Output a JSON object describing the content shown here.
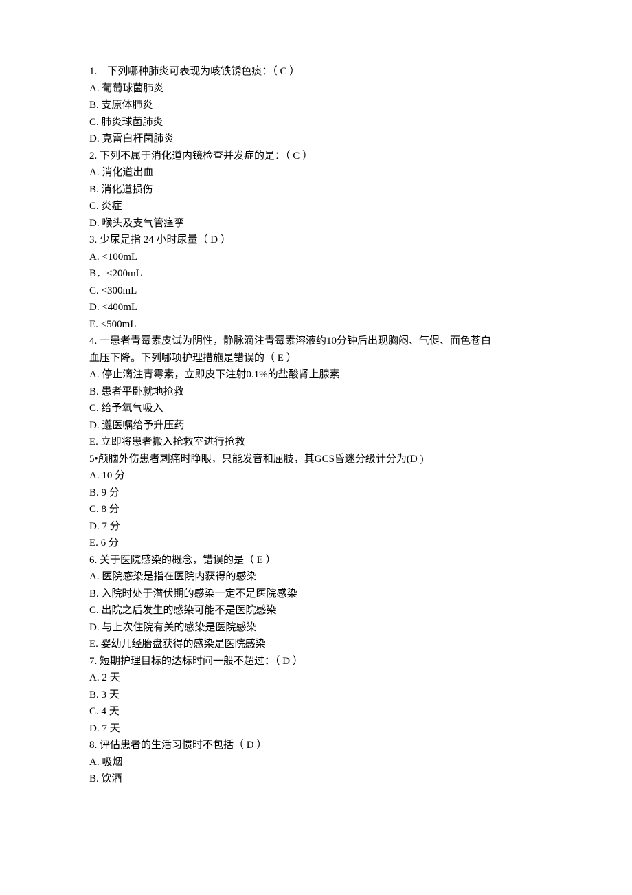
{
  "lines": [
    "1.　下列哪种肺炎可表现为咳铁锈色痰：（ C ）",
    "A.  葡萄球菌肺炎",
    "B.  支原体肺炎",
    "C.  肺炎球菌肺炎",
    "D.  克雷白杆菌肺炎",
    "2.  下列不属于消化道内镜检查并发症的是：（ C ）",
    "A.  消化道出血",
    "B.  消化道损伤",
    "C.  炎症",
    "D.  喉头及支气管痉挛",
    "3.  少尿是指  24 小时尿量（  D ）",
    "A.  <100mL",
    "B．<200mL",
    "C.  <300mL",
    "D.  <400mL",
    "E.  <500mL",
    "4.  一患者青霉素皮试为阴性，静脉滴注青霉素溶液约10分钟后出现胸闷、气促、面色苍白",
    "血压下降。下列哪项护理措施是错误的（ E      ）",
    "A.  停止滴注青霉素，立即皮下注射0.1%的盐酸肾上腺素",
    "B.  患者平卧就地抢救",
    "C.  给予氧气吸入",
    "D.  遵医嘱给予升压药",
    "E.  立即将患者搬入抢救室进行抢救",
    "5•颅脑外伤患者刺痛时睁眼，只能发音和屈肢，其GCS昏迷分级计分为(D )",
    "A.  10 分",
    "B.  9 分",
    "C.  8 分",
    "D.  7 分",
    "E.  6 分",
    "6.  关于医院感染的概念，错误的是（ E ）",
    "A.  医院感染是指在医院内获得的感染",
    "B.  入院时处于潜伏期的感染一定不是医院感染",
    "C.  出院之后发生的感染可能不是医院感染",
    "D.  与上次住院有关的感染是医院感染",
    "E.  婴幼儿经胎盘获得的感染是医院感染",
    "7.  短期护理目标的达标时间一般不超过：（ D ）",
    "A.  2 天",
    "B.  3 天",
    "C.  4 天",
    "D.  7 天",
    "8.  评估患者的生活习惯时不包括（ D ）",
    "A.  吸烟",
    "B.  饮酒"
  ]
}
